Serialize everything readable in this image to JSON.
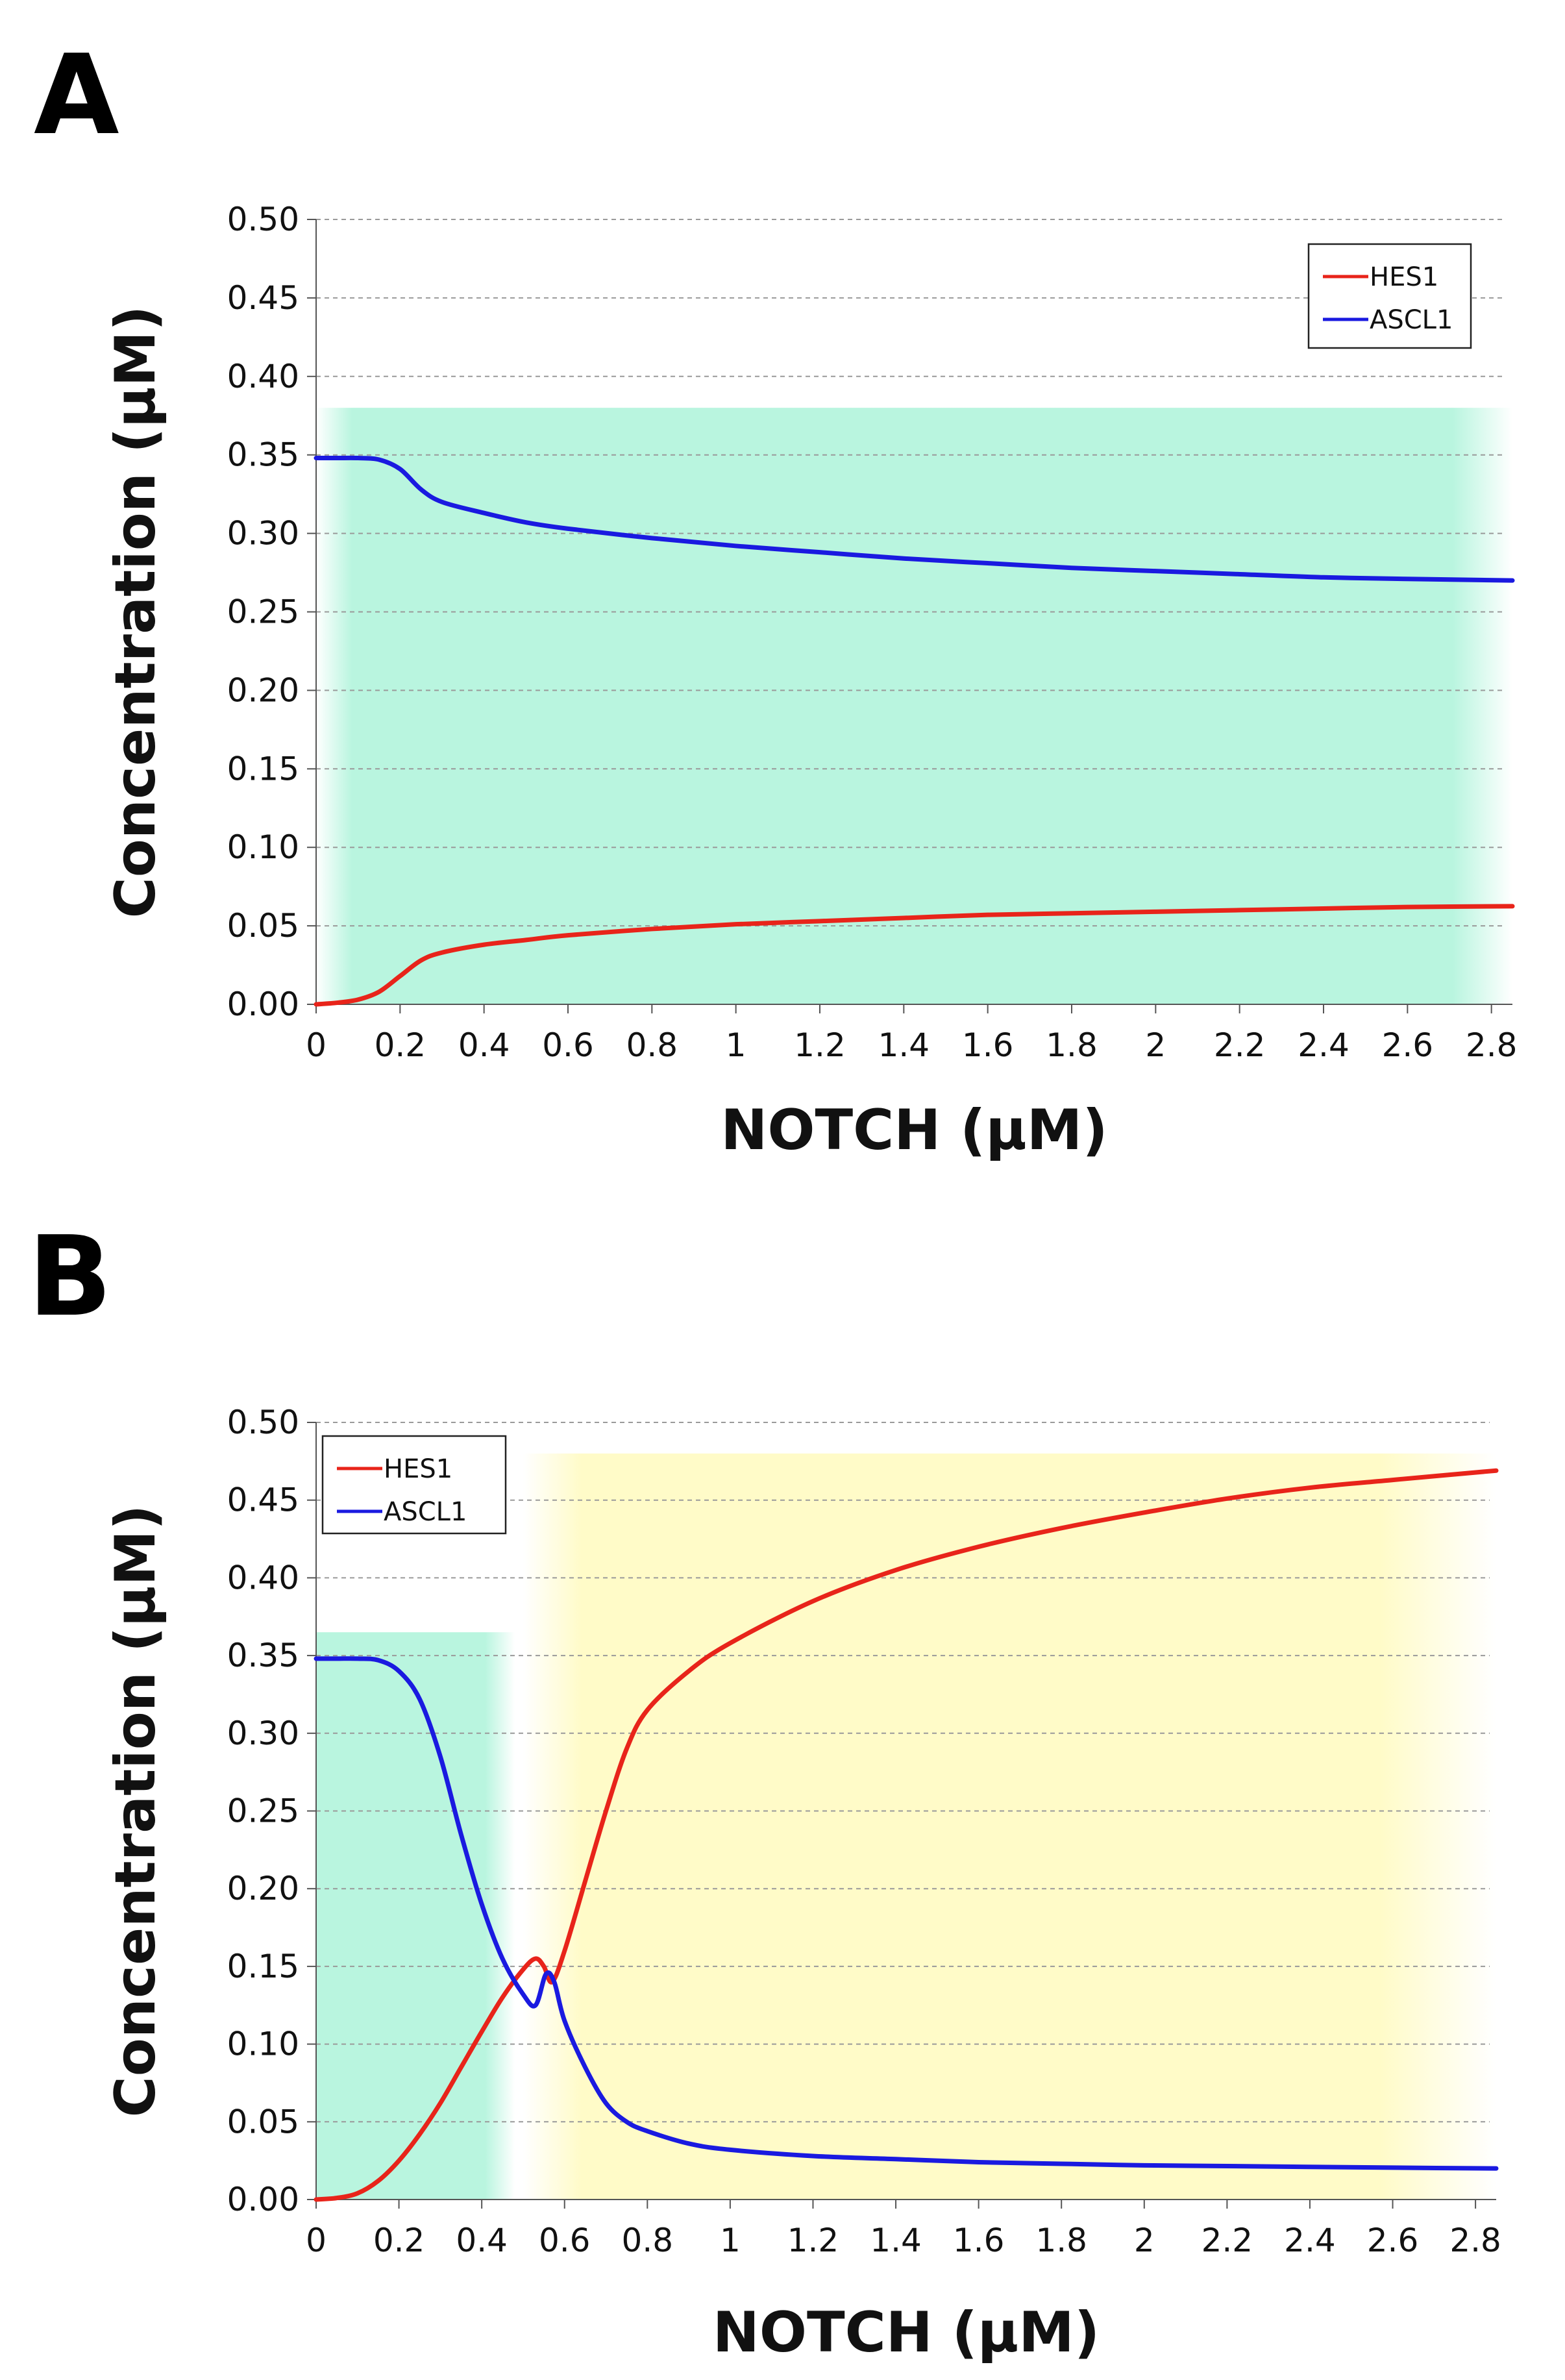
{
  "chart_data": [
    {
      "panel": "A",
      "type": "line",
      "xlabel": "NOTCH (μM)",
      "ylabel": "Concentration (μM)",
      "xlim": [
        0,
        2.85
      ],
      "ylim": [
        0,
        0.5
      ],
      "x_ticks": [
        "0",
        "0.2",
        "0.4",
        "0.6",
        "0.8",
        "1",
        "1.2",
        "1.4",
        "1.6",
        "1.8",
        "2",
        "2.2",
        "2.4",
        "2.6",
        "2.8"
      ],
      "x_tick_values": [
        0,
        0.2,
        0.4,
        0.6,
        0.8,
        1,
        1.2,
        1.4,
        1.6,
        1.8,
        2,
        2.2,
        2.4,
        2.6,
        2.8
      ],
      "y_ticks": [
        "0.00",
        "0.05",
        "0.10",
        "0.15",
        "0.20",
        "0.25",
        "0.30",
        "0.35",
        "0.40",
        "0.45",
        "0.50"
      ],
      "y_tick_values": [
        0,
        0.05,
        0.1,
        0.15,
        0.2,
        0.25,
        0.3,
        0.35,
        0.4,
        0.45,
        0.5
      ],
      "grid": "horizontal-dashed",
      "legend_position": "top-right",
      "regions": [
        {
          "name": "green-region",
          "color": "#b9f5df",
          "x": [
            0,
            2.85
          ],
          "y": [
            0,
            0.38
          ]
        }
      ],
      "series": [
        {
          "name": "HES1",
          "color": "#e8241a",
          "x": [
            0,
            0.05,
            0.1,
            0.15,
            0.2,
            0.25,
            0.3,
            0.4,
            0.5,
            0.6,
            0.8,
            1.0,
            1.2,
            1.4,
            1.6,
            1.8,
            2.0,
            2.2,
            2.4,
            2.6,
            2.85
          ],
          "y": [
            0,
            0.001,
            0.003,
            0.008,
            0.018,
            0.028,
            0.033,
            0.038,
            0.041,
            0.044,
            0.048,
            0.051,
            0.053,
            0.055,
            0.057,
            0.058,
            0.059,
            0.06,
            0.061,
            0.062,
            0.0625
          ]
        },
        {
          "name": "ASCL1",
          "color": "#1a1ae0",
          "x": [
            0,
            0.05,
            0.1,
            0.15,
            0.2,
            0.25,
            0.3,
            0.4,
            0.5,
            0.6,
            0.8,
            1.0,
            1.2,
            1.4,
            1.6,
            1.8,
            2.0,
            2.2,
            2.4,
            2.6,
            2.85
          ],
          "y": [
            0.348,
            0.348,
            0.348,
            0.347,
            0.341,
            0.328,
            0.32,
            0.313,
            0.307,
            0.303,
            0.297,
            0.292,
            0.288,
            0.284,
            0.281,
            0.278,
            0.276,
            0.274,
            0.272,
            0.271,
            0.27
          ]
        }
      ]
    },
    {
      "panel": "B",
      "type": "line",
      "xlabel": "NOTCH (μM)",
      "ylabel": "Concentration (μM)",
      "xlim": [
        0,
        2.85
      ],
      "ylim": [
        0,
        0.5
      ],
      "x_ticks": [
        "0",
        "0.2",
        "0.4",
        "0.6",
        "0.8",
        "1",
        "1.2",
        "1.4",
        "1.6",
        "1.8",
        "2",
        "2.2",
        "2.4",
        "2.6",
        "2.8"
      ],
      "x_tick_values": [
        0,
        0.2,
        0.4,
        0.6,
        0.8,
        1,
        1.2,
        1.4,
        1.6,
        1.8,
        2,
        2.2,
        2.4,
        2.6,
        2.8
      ],
      "y_ticks": [
        "0.00",
        "0.05",
        "0.10",
        "0.15",
        "0.20",
        "0.25",
        "0.30",
        "0.35",
        "0.40",
        "0.45",
        "0.50"
      ],
      "y_tick_values": [
        0,
        0.05,
        0.1,
        0.15,
        0.2,
        0.25,
        0.3,
        0.35,
        0.4,
        0.45,
        0.5
      ],
      "grid": "horizontal-dashed",
      "legend_position": "top-left",
      "regions": [
        {
          "name": "green-region",
          "color": "#b9f5df",
          "x": [
            0,
            0.48
          ],
          "y": [
            0,
            0.365
          ]
        },
        {
          "name": "yellow-region",
          "color": "#fffbc8",
          "x": [
            0.5,
            2.85
          ],
          "y": [
            0,
            0.48
          ]
        }
      ],
      "series": [
        {
          "name": "HES1",
          "color": "#e8241a",
          "x": [
            0,
            0.05,
            0.1,
            0.15,
            0.2,
            0.25,
            0.3,
            0.35,
            0.4,
            0.45,
            0.5,
            0.53,
            0.55,
            0.57,
            0.6,
            0.65,
            0.7,
            0.75,
            0.8,
            0.9,
            1.0,
            1.2,
            1.4,
            1.6,
            1.8,
            2.0,
            2.2,
            2.4,
            2.6,
            2.85
          ],
          "y": [
            0,
            0.001,
            0.004,
            0.012,
            0.025,
            0.042,
            0.062,
            0.085,
            0.108,
            0.13,
            0.148,
            0.155,
            0.15,
            0.14,
            0.16,
            0.205,
            0.25,
            0.29,
            0.315,
            0.34,
            0.358,
            0.385,
            0.405,
            0.42,
            0.432,
            0.442,
            0.451,
            0.458,
            0.463,
            0.469
          ]
        },
        {
          "name": "ASCL1",
          "color": "#1a1ae0",
          "x": [
            0,
            0.05,
            0.1,
            0.15,
            0.2,
            0.25,
            0.3,
            0.35,
            0.4,
            0.45,
            0.5,
            0.53,
            0.555,
            0.575,
            0.6,
            0.65,
            0.7,
            0.75,
            0.8,
            0.9,
            1.0,
            1.2,
            1.4,
            1.6,
            1.8,
            2.0,
            2.2,
            2.4,
            2.6,
            2.85
          ],
          "y": [
            0.348,
            0.348,
            0.348,
            0.347,
            0.34,
            0.322,
            0.285,
            0.235,
            0.19,
            0.155,
            0.132,
            0.125,
            0.145,
            0.14,
            0.115,
            0.085,
            0.062,
            0.05,
            0.044,
            0.036,
            0.032,
            0.028,
            0.026,
            0.024,
            0.023,
            0.022,
            0.0215,
            0.021,
            0.0205,
            0.02
          ]
        }
      ]
    }
  ]
}
